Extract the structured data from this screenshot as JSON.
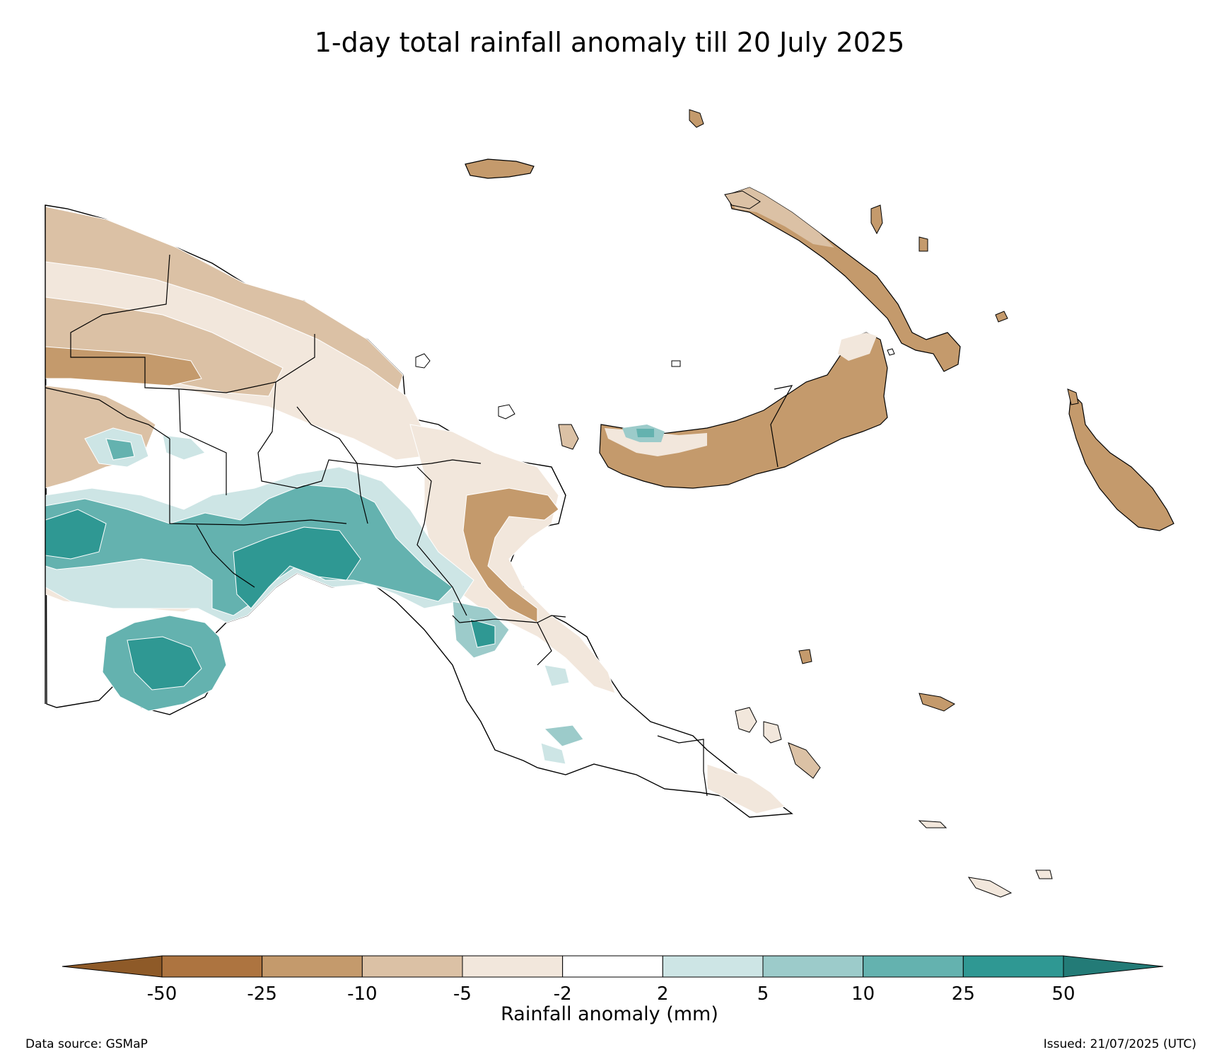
{
  "title": "1-day total rainfall anomaly till 20 July 2025",
  "colorbar": {
    "label": "Rainfall anomaly (mm)",
    "ticks": [
      "-50",
      "-25",
      "-10",
      "-5",
      "-2",
      "2",
      "5",
      "10",
      "25",
      "50"
    ],
    "colors": {
      "extend_low": "#8e5a28",
      "lt_-25": "#ad7440",
      "-25_-10": "#c49a6c",
      "-10_-5": "#dbc1a5",
      "-5_-2": "#f2e7dc",
      "-2_2": "#ffffff",
      "2_5": "#cde5e5",
      "5_10": "#9ccbca",
      "10_25": "#64b2af",
      "25_50": "#2f9893",
      "extend_high": "#237b77"
    }
  },
  "footer": {
    "source": "Data source: GSMaP",
    "issued": "Issued: 21/07/2025 (UTC)"
  }
}
